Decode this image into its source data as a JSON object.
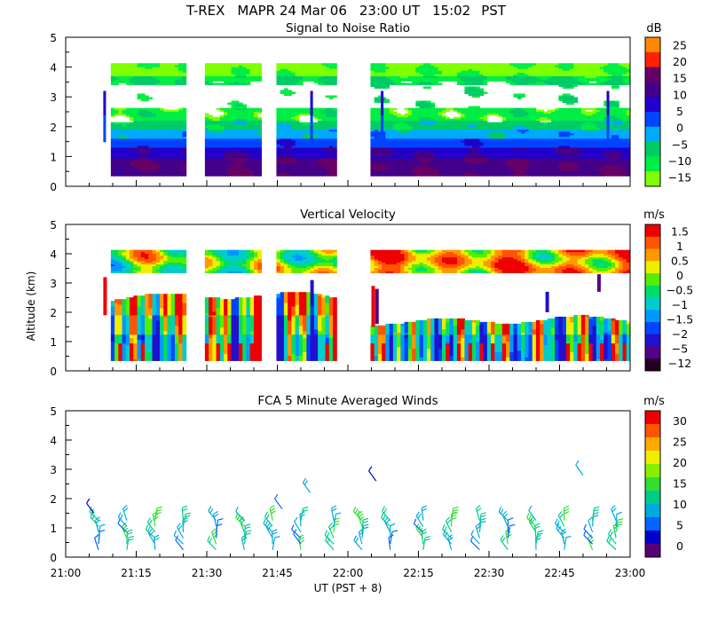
{
  "title": {
    "project": "T-REX",
    "instrument_date": "MAPR 24 Mar 06",
    "ut": "23:00 UT",
    "pst": "15:02",
    "tz": "PST"
  },
  "x_axis": {
    "label": "UT  (PST + 8)",
    "range_minutes": [
      1260,
      1380
    ],
    "tick_labels": [
      "21:00",
      "21:15",
      "21:30",
      "21:45",
      "22:00",
      "22:15",
      "22:30",
      "22:45",
      "23:00"
    ],
    "tick_values": [
      1260,
      1275,
      1290,
      1305,
      1320,
      1335,
      1350,
      1365,
      1380
    ]
  },
  "y_axis": {
    "label": "Altitude (km)",
    "range": [
      0,
      5
    ],
    "tick_labels": [
      "0",
      "1",
      "2",
      "3",
      "4",
      "5"
    ]
  },
  "data_gaps_minutes": [
    [
      1285,
      1289.5
    ],
    [
      1301.5,
      1304.5
    ],
    [
      1317.5,
      1324.5
    ]
  ],
  "colors": {
    "snr": [
      "#7fff00",
      "#00ee44",
      "#00cc66",
      "#00aaff",
      "#0044ff",
      "#2200cc",
      "#440088",
      "#660066",
      "#ff2200",
      "#ff8800",
      "#ffcc00"
    ],
    "velocity": [
      "#220022",
      "#550088",
      "#2211cc",
      "#0044ff",
      "#0099ff",
      "#00cccc",
      "#00dd66",
      "#55ee00",
      "#eeee00",
      "#ff9900",
      "#ff5500",
      "#ee0000"
    ],
    "wind": [
      "#550077",
      "#0000cc",
      "#0066ff",
      "#00aadd",
      "#00cc88",
      "#33dd33",
      "#88ee00",
      "#eeee00",
      "#ffaa00",
      "#ff5500",
      "#ee0000"
    ]
  },
  "chart_data": [
    {
      "type": "heatmap",
      "title": "Signal to Noise Ratio",
      "units": "dB",
      "xlabel": "UT  (PST + 8)",
      "ylabel": "Altitude (km)",
      "ylim": [
        0,
        5
      ],
      "colorbar_ticks": [
        "25",
        "20",
        "15",
        "10",
        "5",
        "0",
        "−5",
        "−10",
        "−15"
      ],
      "colorbar_range": [
        -17.5,
        30
      ],
      "data_top_km": 4.1,
      "data_bottom_km": 0.35,
      "layers": [
        {
          "from_km": 0.35,
          "to_km": 0.9,
          "value_db": 12
        },
        {
          "from_km": 0.9,
          "to_km": 1.3,
          "value_db": 8
        },
        {
          "from_km": 1.3,
          "to_km": 1.6,
          "value_db": 2
        },
        {
          "from_km": 1.6,
          "to_km": 1.9,
          "value_db": -5
        },
        {
          "from_km": 1.9,
          "to_km": 2.2,
          "value_db": -9
        },
        {
          "from_km": 2.2,
          "to_km": 2.6,
          "value_db": -13
        },
        {
          "from_km": 2.6,
          "to_km": 3.4,
          "value_db": "none"
        },
        {
          "from_km": 3.4,
          "to_km": 3.7,
          "value_db": -11
        },
        {
          "from_km": 3.7,
          "to_km": 4.1,
          "value_db": -15
        }
      ]
    },
    {
      "type": "heatmap",
      "title": "Vertical Velocity",
      "units": "m/s",
      "xlabel": "UT  (PST + 8)",
      "ylabel": "Altitude (km)",
      "ylim": [
        0,
        5
      ],
      "colorbar_ticks": [
        "1.5",
        "1",
        "0.5",
        "0",
        "−0.5",
        "−1",
        "−1.5",
        "−2",
        "−5",
        "−12"
      ],
      "colorbar_range": [
        -12,
        2
      ],
      "data_top_km": 4.1,
      "data_bottom_km": 0.35,
      "upper_layer_km": [
        3.35,
        4.1
      ],
      "lower_layer_km": [
        0.35,
        2.6
      ]
    },
    {
      "type": "scatter",
      "title": "FCA 5 Minute Averaged Winds",
      "units": "m/s",
      "xlabel": "UT  (PST + 8)",
      "ylabel": "Altitude (km)",
      "ylim": [
        0,
        5
      ],
      "colorbar_ticks": [
        "30",
        "25",
        "20",
        "15",
        "10",
        "5",
        "0"
      ],
      "colorbar_range": [
        0,
        32
      ],
      "profile_times_minutes": [
        1267,
        1273,
        1279,
        1285,
        1292,
        1298,
        1304,
        1310,
        1317,
        1323,
        1329,
        1336,
        1342,
        1348,
        1354,
        1360,
        1366,
        1372,
        1377
      ],
      "barb_altitudes_km": [
        0.25,
        0.45,
        0.65,
        0.85,
        1.05,
        1.25
      ],
      "isolated_barbs": [
        {
          "time_minutes": 1306,
          "alt_km": 1.65,
          "speed_ms": 5
        },
        {
          "time_minutes": 1312,
          "alt_km": 2.2,
          "speed_ms": 10
        },
        {
          "time_minutes": 1326,
          "alt_km": 2.6,
          "speed_ms": 3
        },
        {
          "time_minutes": 1370,
          "alt_km": 2.8,
          "speed_ms": 8
        },
        {
          "time_minutes": 1266,
          "alt_km": 1.5,
          "speed_ms": 4
        }
      ]
    }
  ]
}
